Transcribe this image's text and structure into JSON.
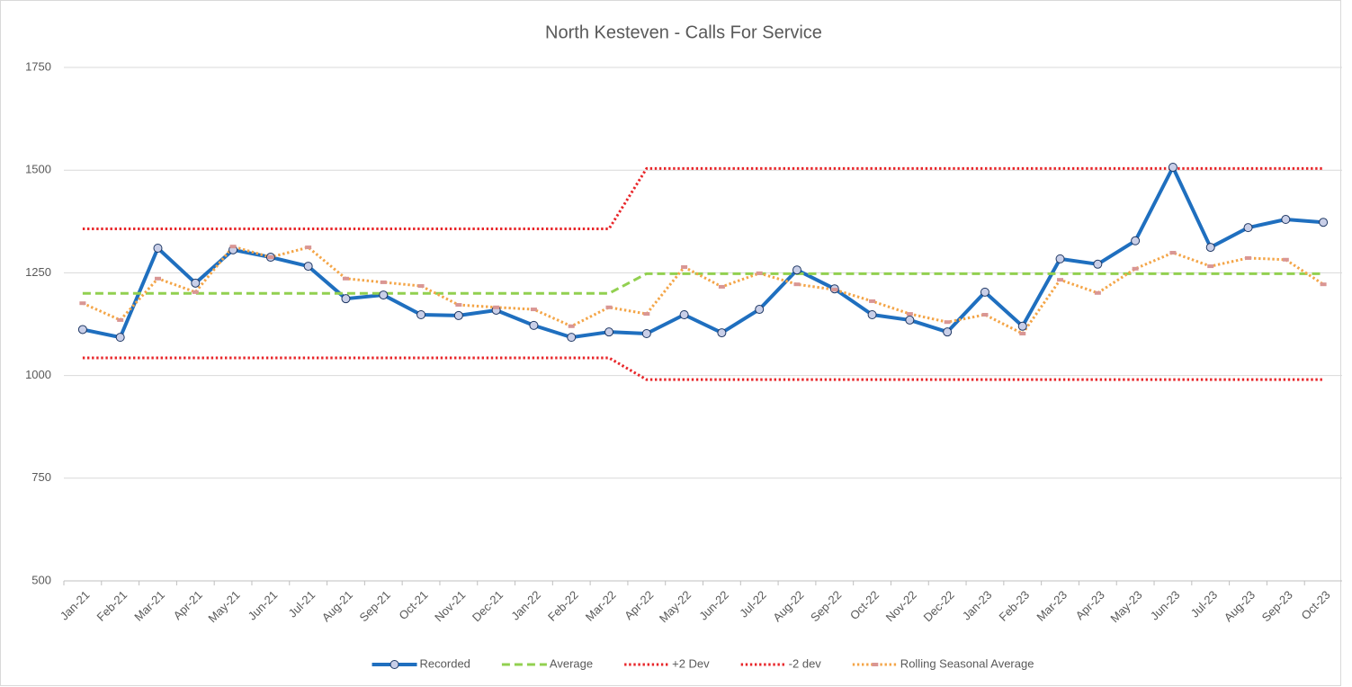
{
  "chart_data": {
    "type": "line",
    "title": "North Kesteven - Calls For Service",
    "categories": [
      "Jan-21",
      "Feb-21",
      "Mar-21",
      "Apr-21",
      "May-21",
      "Jun-21",
      "Jul-21",
      "Aug-21",
      "Sep-21",
      "Oct-21",
      "Nov-21",
      "Dec-21",
      "Jan-22",
      "Feb-22",
      "Mar-22",
      "Apr-22",
      "May-22",
      "Jun-22",
      "Jul-22",
      "Aug-22",
      "Sep-22",
      "Oct-22",
      "Nov-22",
      "Dec-22",
      "Jan-23",
      "Feb-23",
      "Mar-23",
      "Apr-23",
      "May-23",
      "Jun-23",
      "Jul-23",
      "Aug-23",
      "Sep-23",
      "Oct-23"
    ],
    "series": [
      {
        "name": "Recorded",
        "color": "#1f6fbf",
        "dash": "solid",
        "marker": "circle",
        "marker_color": "#c9cfe8",
        "values": [
          1112,
          1093,
          1310,
          1225,
          1306,
          1288,
          1266,
          1187,
          1196,
          1148,
          1146,
          1159,
          1122,
          1093,
          1106,
          1102,
          1148,
          1104,
          1161,
          1257,
          1211,
          1148,
          1135,
          1106,
          1203,
          1120,
          1284,
          1271,
          1328,
          1507,
          1312,
          1360,
          1380,
          1373
        ]
      },
      {
        "name": "Average",
        "color": "#92d050",
        "dash": "dashed",
        "values": [
          1200,
          1200,
          1200,
          1200,
          1200,
          1200,
          1200,
          1200,
          1200,
          1200,
          1200,
          1200,
          1200,
          1200,
          1200,
          1248,
          1248,
          1248,
          1248,
          1248,
          1248,
          1248,
          1248,
          1248,
          1248,
          1248,
          1248,
          1248,
          1248,
          1248,
          1248,
          1248,
          1248,
          1248
        ]
      },
      {
        "name": "+2 Dev",
        "color": "#e8262a",
        "dash": "dotted",
        "values": [
          1357,
          1357,
          1357,
          1357,
          1357,
          1357,
          1357,
          1357,
          1357,
          1357,
          1357,
          1357,
          1357,
          1357,
          1357,
          1504,
          1504,
          1504,
          1504,
          1504,
          1504,
          1504,
          1504,
          1504,
          1504,
          1504,
          1504,
          1504,
          1504,
          1504,
          1504,
          1504,
          1504,
          1504
        ]
      },
      {
        "name": "-2 dev",
        "color": "#e8262a",
        "dash": "dotted",
        "values": [
          1043,
          1043,
          1043,
          1043,
          1043,
          1043,
          1043,
          1043,
          1043,
          1043,
          1043,
          1043,
          1043,
          1043,
          1043,
          990,
          990,
          990,
          990,
          990,
          990,
          990,
          990,
          990,
          990,
          990,
          990,
          990,
          990,
          990,
          990,
          990,
          990,
          990
        ]
      },
      {
        "name": "Rolling Seasonal Average",
        "color": "#f4a547",
        "dash": "dotted",
        "marker": "square",
        "marker_color": "#d99694",
        "values": [
          1176,
          1135,
          1236,
          1203,
          1314,
          1288,
          1312,
          1236,
          1227,
          1218,
          1172,
          1166,
          1161,
          1120,
          1166,
          1150,
          1264,
          1216,
          1249,
          1222,
          1209,
          1181,
          1150,
          1130,
          1148,
          1102,
          1233,
          1201,
          1260,
          1299,
          1266,
          1286,
          1282,
          1222
        ]
      }
    ],
    "ylim": [
      500,
      1750
    ],
    "yticks": [
      500,
      750,
      1000,
      1250,
      1500,
      1750
    ],
    "grid": true,
    "legend": "bottom"
  }
}
